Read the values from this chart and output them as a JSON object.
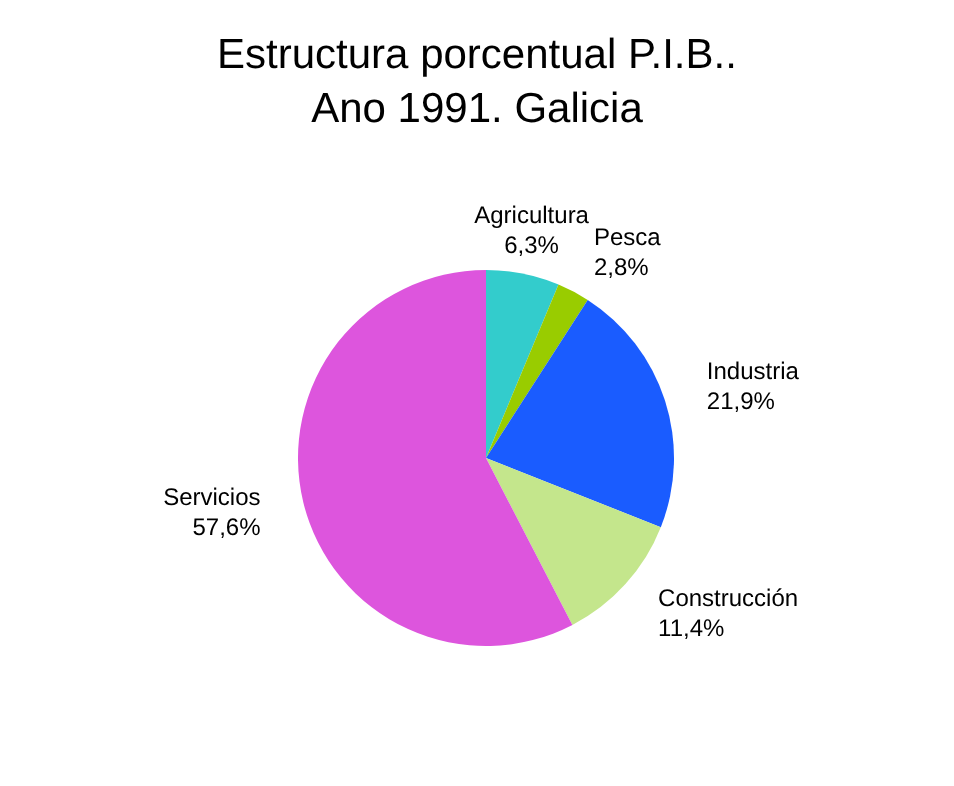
{
  "chart_data": {
    "type": "pie",
    "title": "Estructura porcentual P.I.B.. Ano 1991. Galicia",
    "categories": [
      "Agricultura",
      "Pesca",
      "Industria",
      "Construcción",
      "Servicios"
    ],
    "values": [
      6.3,
      2.8,
      21.9,
      11.4,
      57.6
    ],
    "value_labels": [
      "6,3%",
      "2,8%",
      "21,9%",
      "11,4%",
      "57,6%"
    ],
    "colors": [
      "#33cccc",
      "#99cc00",
      "#1a5cff",
      "#c4e68c",
      "#dd55dd"
    ]
  }
}
